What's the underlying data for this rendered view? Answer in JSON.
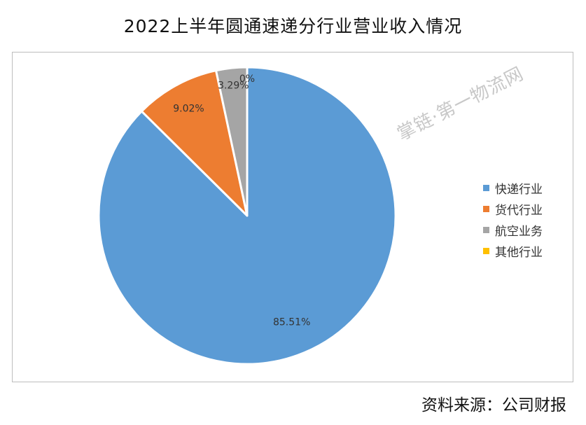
{
  "chart_data": {
    "type": "pie",
    "title": "2022上半年圆通速递分行业营业收入情况",
    "slices": [
      {
        "name": "快递行业",
        "value": 85.51,
        "label": "85.51%",
        "color": "#5b9bd5"
      },
      {
        "name": "货代行业",
        "value": 9.02,
        "label": "9.02%",
        "color": "#ed7d31"
      },
      {
        "name": "航空业务",
        "value": 3.29,
        "label": "3.29%",
        "color": "#a5a5a5"
      },
      {
        "name": "其他行业",
        "value": 0,
        "label": "0%",
        "color": "#ffc000"
      }
    ],
    "legend_position": "right"
  },
  "watermark": "掌链·第一物流网",
  "source": "资料来源：公司财报"
}
